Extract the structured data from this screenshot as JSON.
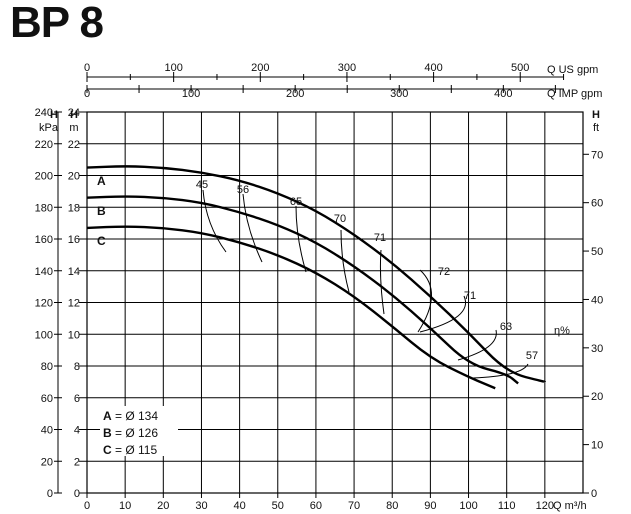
{
  "title": "BP 8",
  "chart_data": {
    "type": "line",
    "title": "BP 8",
    "xlabel": "Q m³/h",
    "x_ticks": [
      0,
      10,
      20,
      30,
      40,
      50,
      60,
      70,
      80,
      90,
      100,
      110,
      120
    ],
    "xlim": [
      0,
      130
    ],
    "left_axis_m": {
      "label_top": "H",
      "label_unit": "m",
      "ticks": [
        0,
        2,
        4,
        6,
        8,
        10,
        12,
        14,
        16,
        18,
        20,
        22,
        24
      ],
      "ylim": [
        0,
        24
      ]
    },
    "left_axis_kpa": {
      "label_top": "H",
      "label_unit": "kPa",
      "ticks": [
        0,
        20,
        40,
        60,
        80,
        100,
        120,
        140,
        160,
        180,
        200,
        220,
        240
      ]
    },
    "right_axis_ft": {
      "label_top": "H",
      "label_unit": "ft",
      "ticks": [
        0,
        10,
        20,
        30,
        40,
        50,
        60,
        70
      ]
    },
    "right_axis_eta": {
      "label": "η%"
    },
    "top_axis_us": {
      "label": "Q US gpm",
      "ticks": [
        0,
        100,
        200,
        300,
        400,
        500
      ]
    },
    "top_axis_imp": {
      "label": "Q IMP gpm",
      "ticks": [
        0,
        100,
        200,
        300,
        400
      ]
    },
    "series": [
      {
        "name": "A",
        "points": [
          [
            0,
            20.5
          ],
          [
            10,
            20.6
          ],
          [
            20,
            20.5
          ],
          [
            30,
            20.2
          ],
          [
            40,
            19.7
          ],
          [
            50,
            18.9
          ],
          [
            60,
            17.8
          ],
          [
            70,
            16.3
          ],
          [
            80,
            14.5
          ],
          [
            90,
            12.4
          ],
          [
            100,
            10.1
          ],
          [
            110,
            7.6
          ],
          [
            120,
            7.0
          ]
        ]
      },
      {
        "name": "B",
        "points": [
          [
            0,
            18.6
          ],
          [
            10,
            18.7
          ],
          [
            20,
            18.6
          ],
          [
            30,
            18.3
          ],
          [
            40,
            17.7
          ],
          [
            50,
            16.9
          ],
          [
            60,
            15.8
          ],
          [
            70,
            14.3
          ],
          [
            80,
            12.5
          ],
          [
            90,
            10.4
          ],
          [
            100,
            8.1
          ],
          [
            110,
            7.5
          ],
          [
            113,
            6.9
          ]
        ]
      },
      {
        "name": "C",
        "points": [
          [
            0,
            16.7
          ],
          [
            10,
            16.8
          ],
          [
            20,
            16.7
          ],
          [
            30,
            16.4
          ],
          [
            40,
            15.8
          ],
          [
            50,
            15.0
          ],
          [
            60,
            13.9
          ],
          [
            70,
            12.4
          ],
          [
            80,
            10.5
          ],
          [
            90,
            8.5
          ],
          [
            100,
            7.3
          ],
          [
            107,
            6.6
          ]
        ]
      }
    ],
    "curve_labels": [
      "A",
      "B",
      "C"
    ],
    "efficiency_labels": [
      "45",
      "56",
      "65",
      "70",
      "71",
      "72",
      "71",
      "63",
      "57"
    ],
    "legend": [
      {
        "key": "A",
        "text": "= Ø 134"
      },
      {
        "key": "B",
        "text": "= Ø 126"
      },
      {
        "key": "C",
        "text": "= Ø 115"
      }
    ],
    "grid": true
  }
}
